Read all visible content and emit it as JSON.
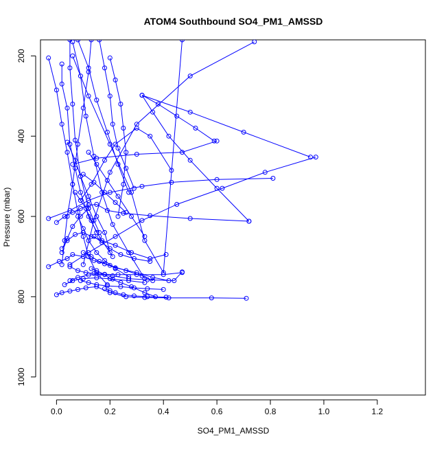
{
  "chart_data": {
    "type": "scatter",
    "title": "ATOM4 Southbound SO4_PM1_AMSSD",
    "xlabel": "SO4_PM1_AMSSD",
    "ylabel": "Pressure (mbar)",
    "xlim": [
      -0.06,
      1.38
    ],
    "ylim": [
      1045,
      160
    ],
    "y_reversed": true,
    "grid": false,
    "x_ticks": [
      0.0,
      0.2,
      0.4,
      0.6,
      0.8,
      1.0,
      1.2
    ],
    "x_tick_labels": [
      "0.0",
      "0.2",
      "0.4",
      "0.6",
      "0.8",
      "1.0",
      "1.2"
    ],
    "y_ticks": [
      200,
      400,
      600,
      800,
      1000
    ],
    "y_tick_labels": [
      "200",
      "400",
      "600",
      "800",
      "1000"
    ],
    "series_color": "#0000ff",
    "series": [
      {
        "x": [
          -0.03,
          0.01,
          0.04,
          0.06,
          0.1,
          0.14,
          0.18,
          0.22,
          0.3,
          0.36,
          0.42
        ],
        "y": [
          725,
          712,
          705,
          695,
          700,
          710,
          718,
          728,
          740,
          752,
          760
        ]
      },
      {
        "x": [
          0.0,
          0.02,
          0.05,
          0.08,
          0.11,
          0.15,
          0.2,
          0.26,
          0.33,
          0.42,
          0.58,
          0.71
        ],
        "y": [
          795,
          790,
          786,
          782,
          778,
          775,
          790,
          800,
          802,
          803,
          803,
          804
        ]
      },
      {
        "x": [
          0.02,
          0.04,
          0.07,
          0.1,
          0.13,
          0.17,
          0.22,
          0.28,
          0.35,
          0.41
        ],
        "y": [
          680,
          660,
          645,
          640,
          650,
          660,
          672,
          690,
          705,
          695
        ]
      },
      {
        "x": [
          0.05,
          0.08,
          0.12,
          0.16,
          0.21,
          0.27,
          0.34,
          0.44,
          0.47
        ],
        "y": [
          760,
          752,
          746,
          744,
          748,
          755,
          758,
          760,
          738
        ]
      },
      {
        "x": [
          -0.03,
          0.05,
          0.12,
          0.2,
          0.32,
          0.43,
          0.6,
          0.81
        ],
        "y": [
          605,
          585,
          560,
          540,
          525,
          515,
          508,
          505
        ]
      },
      {
        "x": [
          0.0,
          0.03,
          0.06,
          0.09,
          0.12,
          0.15,
          0.19,
          0.25,
          0.35,
          0.5,
          0.72
        ],
        "y": [
          615,
          600,
          590,
          580,
          572,
          570,
          585,
          592,
          598,
          605,
          612
        ]
      },
      {
        "x": [
          0.1,
          0.14,
          0.2,
          0.3,
          0.5,
          0.74
        ],
        "y": [
          720,
          610,
          490,
          370,
          250,
          165
        ]
      },
      {
        "x": [
          0.05,
          0.12,
          0.22,
          0.32,
          0.45,
          0.62,
          0.78,
          0.97
        ],
        "y": [
          720,
          690,
          650,
          610,
          570,
          530,
          490,
          452
        ]
      },
      {
        "x": [
          0.32,
          0.38,
          0.45,
          0.52,
          0.59
        ],
        "y": [
          298,
          320,
          350,
          380,
          412
        ]
      },
      {
        "x": [
          0.32,
          0.36,
          0.42,
          0.5,
          0.6,
          0.72
        ],
        "y": [
          298,
          340,
          400,
          460,
          530,
          612
        ]
      },
      {
        "x": [
          0.32,
          0.5,
          0.7,
          0.95
        ],
        "y": [
          298,
          340,
          390,
          452
        ]
      },
      {
        "x": [
          0.06,
          0.15,
          0.3,
          0.47,
          0.6
        ],
        "y": [
          470,
          455,
          445,
          440,
          412
        ]
      },
      {
        "x": [
          0.09,
          0.13,
          0.18,
          0.22,
          0.3,
          0.35,
          0.43
        ],
        "y": [
          560,
          520,
          460,
          420,
          380,
          400,
          485
        ]
      },
      {
        "x": [
          0.06,
          0.12,
          0.2,
          0.28,
          0.33,
          0.4,
          0.47
        ],
        "y": [
          200,
          300,
          420,
          540,
          660,
          740,
          160
        ]
      },
      {
        "x": [
          -0.03,
          0.0,
          0.02,
          0.04,
          0.06,
          0.08,
          0.1,
          0.12,
          0.15,
          0.19
        ],
        "y": [
          205,
          285,
          370,
          440,
          520,
          590,
          650,
          700,
          740,
          770
        ]
      },
      {
        "x": [
          0.02,
          0.02,
          0.04,
          0.05,
          0.07,
          0.09,
          0.12,
          0.16,
          0.21
        ],
        "y": [
          220,
          270,
          330,
          420,
          480,
          540,
          600,
          650,
          700
        ]
      },
      {
        "x": [
          0.05,
          0.05,
          0.06,
          0.07,
          0.09,
          0.12,
          0.16
        ],
        "y": [
          160,
          230,
          320,
          410,
          500,
          580,
          640
        ]
      },
      {
        "x": [
          0.06,
          0.09,
          0.11,
          0.14,
          0.17,
          0.21,
          0.27,
          0.33
        ],
        "y": [
          165,
          250,
          350,
          450,
          540,
          620,
          690,
          755
        ]
      },
      {
        "x": [
          0.08,
          0.12,
          0.15,
          0.19,
          0.23,
          0.27
        ],
        "y": [
          160,
          230,
          310,
          390,
          470,
          540
        ]
      },
      {
        "x": [
          0.2,
          0.22,
          0.24,
          0.25,
          0.26,
          0.25,
          0.23
        ],
        "y": [
          205,
          260,
          320,
          380,
          440,
          520,
          600
        ]
      },
      {
        "x": [
          0.16,
          0.18,
          0.2,
          0.21,
          0.23,
          0.26,
          0.29
        ],
        "y": [
          160,
          230,
          300,
          370,
          430,
          480,
          530
        ]
      },
      {
        "x": [
          0.13,
          0.12,
          0.1,
          0.08,
          0.06,
          0.04,
          0.03,
          0.02
        ],
        "y": [
          160,
          240,
          330,
          420,
          520,
          600,
          660,
          720
        ]
      },
      {
        "x": [
          0.04,
          0.07,
          0.09,
          0.12,
          0.15,
          0.18,
          0.2
        ],
        "y": [
          415,
          460,
          500,
          550,
          600,
          640,
          690
        ]
      },
      {
        "x": [
          0.05,
          0.08,
          0.11,
          0.14,
          0.18,
          0.23,
          0.3,
          0.4,
          0.47
        ],
        "y": [
          725,
          735,
          740,
          742,
          744,
          745,
          745,
          745,
          740
        ]
      },
      {
        "x": [
          0.09,
          0.12,
          0.15,
          0.19,
          0.24,
          0.29,
          0.34,
          0.4
        ],
        "y": [
          760,
          765,
          770,
          773,
          775,
          778,
          780,
          782
        ]
      },
      {
        "x": [
          0.13,
          0.15,
          0.18,
          0.2,
          0.24,
          0.28,
          0.33,
          0.37
        ],
        "y": [
          730,
          735,
          745,
          755,
          765,
          775,
          790,
          800
        ]
      },
      {
        "x": [
          0.08,
          0.1,
          0.12,
          0.15,
          0.18,
          0.22,
          0.27
        ],
        "y": [
          600,
          630,
          660,
          690,
          710,
          730,
          750
        ]
      },
      {
        "x": [
          0.1,
          0.13,
          0.16,
          0.2,
          0.26,
          0.32,
          0.36
        ],
        "y": [
          690,
          700,
          712,
          722,
          735,
          748,
          760
        ]
      },
      {
        "x": [
          0.03,
          0.06,
          0.1,
          0.15,
          0.21,
          0.27,
          0.33
        ],
        "y": [
          770,
          760,
          755,
          753,
          756,
          760,
          765
        ]
      },
      {
        "x": [
          0.14,
          0.17,
          0.2,
          0.24,
          0.29,
          0.35
        ],
        "y": [
          650,
          665,
          680,
          695,
          705,
          712
        ]
      },
      {
        "x": [
          0.1,
          0.14,
          0.18,
          0.22,
          0.26
        ],
        "y": [
          495,
          515,
          540,
          565,
          590
        ]
      },
      {
        "x": [
          0.02,
          0.04,
          0.06,
          0.09,
          0.12
        ],
        "y": [
          690,
          655,
          625,
          600,
          580
        ]
      },
      {
        "x": [
          0.12,
          0.15,
          0.19,
          0.23,
          0.28,
          0.33
        ],
        "y": [
          440,
          470,
          510,
          550,
          600,
          650
        ]
      },
      {
        "x": [
          0.07,
          0.09,
          0.11,
          0.13,
          0.15
        ],
        "y": [
          540,
          560,
          580,
          610,
          640
        ]
      },
      {
        "x": [
          0.18,
          0.2,
          0.22,
          0.25,
          0.29,
          0.34,
          0.41
        ],
        "y": [
          780,
          785,
          790,
          795,
          798,
          800,
          801
        ]
      }
    ]
  }
}
